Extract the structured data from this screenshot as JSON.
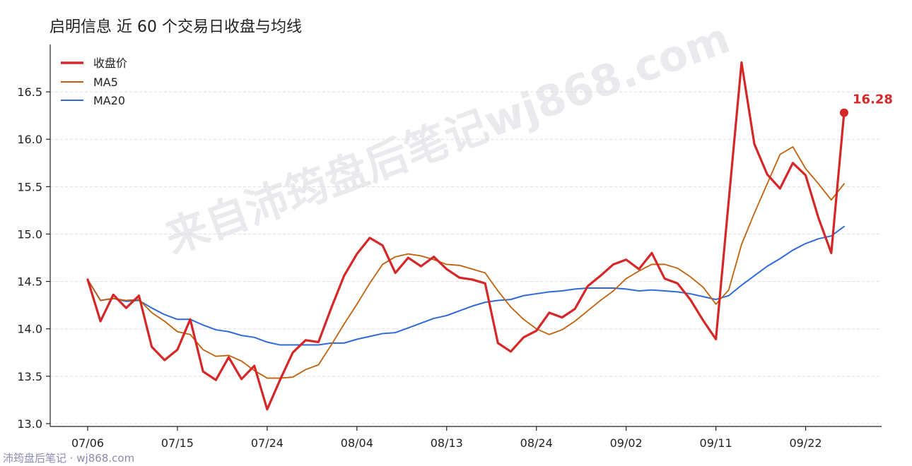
{
  "chart_data": {
    "type": "line",
    "title": "启明信息 近 60 个交易日收盘与均线",
    "xlabel": "",
    "ylabel": "",
    "ylim": [
      12.97,
      17.0
    ],
    "yticks": [
      13.0,
      13.5,
      14.0,
      14.5,
      15.0,
      15.5,
      16.0,
      16.5
    ],
    "xtick_labels": [
      "07/06",
      "07/15",
      "07/24",
      "08/04",
      "08/13",
      "08/24",
      "09/02",
      "09/11",
      "09/22"
    ],
    "xtick_index": [
      0,
      7,
      14,
      21,
      28,
      35,
      42,
      49,
      56
    ],
    "grid": true,
    "legend_position": "top-left",
    "last_value_label": "16.28",
    "colors": {
      "close": "#d62728",
      "ma5": "#c0600a",
      "ma20": "#2f6ad6"
    },
    "series": [
      {
        "name": "收盘价",
        "key": "close",
        "values": [
          14.52,
          14.08,
          14.36,
          14.22,
          14.35,
          13.81,
          13.67,
          13.78,
          14.1,
          13.55,
          13.46,
          13.7,
          13.47,
          13.61,
          13.15,
          13.46,
          13.75,
          13.88,
          13.86,
          14.22,
          14.56,
          14.79,
          14.96,
          14.88,
          14.59,
          14.75,
          14.66,
          14.76,
          14.63,
          14.54,
          14.52,
          14.48,
          13.85,
          13.76,
          13.91,
          13.98,
          14.17,
          14.12,
          14.21,
          14.45,
          14.56,
          14.68,
          14.73,
          14.63,
          14.8,
          14.53,
          14.48,
          14.31,
          14.09,
          13.89,
          15.35,
          16.81,
          15.95,
          15.63,
          15.48,
          15.75,
          15.62,
          15.17,
          14.8,
          16.28
        ]
      },
      {
        "name": "MA5",
        "key": "ma5",
        "values": [
          14.52,
          14.3,
          14.32,
          14.3,
          14.31,
          14.17,
          14.08,
          13.97,
          13.94,
          13.78,
          13.71,
          13.72,
          13.66,
          13.56,
          13.48,
          13.48,
          13.49,
          13.57,
          13.62,
          13.83,
          14.05,
          14.26,
          14.48,
          14.68,
          14.76,
          14.79,
          14.77,
          14.73,
          14.68,
          14.67,
          14.63,
          14.59,
          14.4,
          14.23,
          14.1,
          14.0,
          13.94,
          13.99,
          14.08,
          14.19,
          14.3,
          14.4,
          14.53,
          14.61,
          14.68,
          14.68,
          14.64,
          14.55,
          14.44,
          14.26,
          14.41,
          14.89,
          15.22,
          15.53,
          15.84,
          15.92,
          15.69,
          15.53,
          15.36,
          15.53
        ]
      },
      {
        "name": "MA20",
        "key": "ma20",
        "values": [
          14.52,
          14.3,
          14.32,
          14.29,
          14.3,
          14.22,
          14.15,
          14.1,
          14.1,
          14.04,
          13.99,
          13.97,
          13.93,
          13.91,
          13.86,
          13.83,
          13.83,
          13.83,
          13.83,
          13.85,
          13.85,
          13.89,
          13.92,
          13.95,
          13.96,
          14.01,
          14.06,
          14.11,
          14.14,
          14.19,
          14.24,
          14.28,
          14.3,
          14.31,
          14.35,
          14.37,
          14.39,
          14.4,
          14.42,
          14.43,
          14.43,
          14.43,
          14.42,
          14.4,
          14.41,
          14.4,
          14.39,
          14.37,
          14.34,
          14.31,
          14.35,
          14.46,
          14.56,
          14.66,
          14.74,
          14.83,
          14.9,
          14.95,
          14.98,
          15.08
        ]
      }
    ]
  },
  "watermark": "来自沛筠盘后笔记wj868.com",
  "footer": "沛筠盘后笔记 · wj868.com"
}
